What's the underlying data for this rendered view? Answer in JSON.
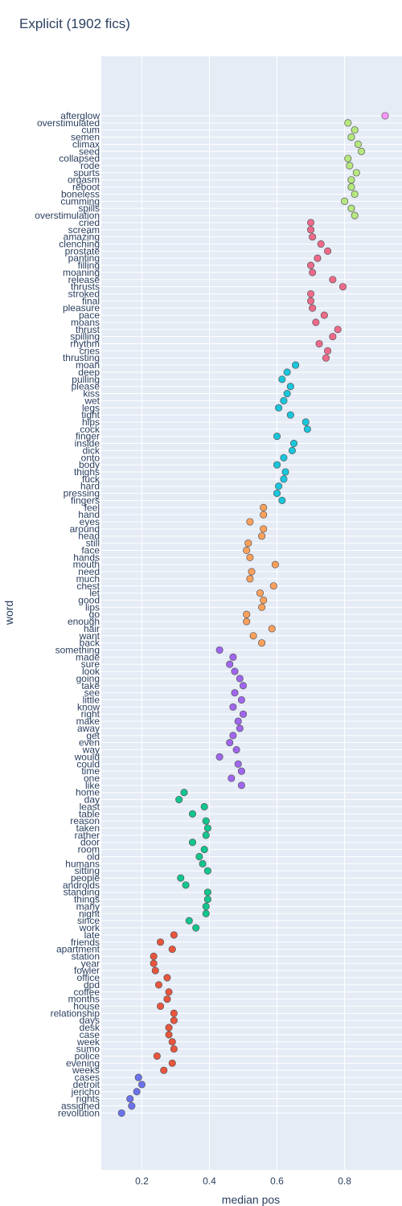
{
  "chart_data": {
    "type": "scatter",
    "title": "Explicit (1902 fics)",
    "xlabel": "median pos",
    "ylabel": "word",
    "xlim": [
      0.08,
      0.97
    ],
    "xticks": [
      0.2,
      0.4,
      0.6,
      0.8
    ],
    "xtick_labels": [
      "0.2",
      "0.4",
      "0.6",
      "0.8"
    ],
    "grid": true,
    "legend": "none",
    "plot_bg": "#e5ecf6",
    "grid_color": "#ffffff",
    "text_color": "#2a3f5f",
    "marker_outline": "#555555",
    "clusters": [
      {
        "color": "#ff97ff",
        "points": [
          [
            "afterglow",
            0.92
          ]
        ]
      },
      {
        "color": "#b6e880",
        "points": [
          [
            "overstimulated",
            0.81
          ],
          [
            "cum",
            0.83
          ],
          [
            "semen",
            0.82
          ],
          [
            "climax",
            0.84
          ],
          [
            "seed",
            0.85
          ],
          [
            "collapsed",
            0.81
          ],
          [
            "rode",
            0.815
          ],
          [
            "spurts",
            0.835
          ],
          [
            "orgasm",
            0.82
          ],
          [
            "reboot",
            0.82
          ],
          [
            "boneless",
            0.83
          ],
          [
            "cumming",
            0.8
          ],
          [
            "spills",
            0.82
          ],
          [
            "overstimulation",
            0.83
          ]
        ]
      },
      {
        "color": "#ef6a8a",
        "points": [
          [
            "cried",
            0.7
          ],
          [
            "scream",
            0.7
          ],
          [
            "amazing",
            0.705
          ],
          [
            "clenching",
            0.73
          ],
          [
            "prostate",
            0.75
          ],
          [
            "panting",
            0.72
          ],
          [
            "filling",
            0.7
          ],
          [
            "moaning",
            0.705
          ],
          [
            "release",
            0.765
          ],
          [
            "thrusts",
            0.795
          ],
          [
            "stroked",
            0.7
          ],
          [
            "final",
            0.7
          ],
          [
            "pleasure",
            0.705
          ],
          [
            "pace",
            0.74
          ],
          [
            "moans",
            0.715
          ],
          [
            "thrust",
            0.78
          ],
          [
            "spilling",
            0.765
          ],
          [
            "rhythm",
            0.725
          ],
          [
            "cries",
            0.75
          ],
          [
            "thrusting",
            0.745
          ]
        ]
      },
      {
        "color": "#19c6dc",
        "points": [
          [
            "moan",
            0.655
          ],
          [
            "deep",
            0.63
          ],
          [
            "pulling",
            0.615
          ],
          [
            "please",
            0.64
          ],
          [
            "kiss",
            0.63
          ],
          [
            "wet",
            0.62
          ],
          [
            "legs",
            0.605
          ],
          [
            "tight",
            0.64
          ],
          [
            "hips",
            0.685
          ],
          [
            "cock",
            0.69
          ],
          [
            "finger",
            0.6
          ],
          [
            "inside",
            0.65
          ],
          [
            "dick",
            0.645
          ],
          [
            "onto",
            0.62
          ],
          [
            "body",
            0.6
          ],
          [
            "thighs",
            0.625
          ],
          [
            "fuck",
            0.62
          ],
          [
            "hard",
            0.605
          ],
          [
            "pressing",
            0.6
          ],
          [
            "fingers",
            0.615
          ]
        ]
      },
      {
        "color": "#fea15c",
        "points": [
          [
            "feel",
            0.56
          ],
          [
            "hand",
            0.56
          ],
          [
            "eyes",
            0.52
          ],
          [
            "around",
            0.56
          ],
          [
            "head",
            0.555
          ],
          [
            "still",
            0.515
          ],
          [
            "face",
            0.51
          ],
          [
            "hands",
            0.52
          ],
          [
            "mouth",
            0.595
          ],
          [
            "need",
            0.525
          ],
          [
            "much",
            0.52
          ],
          [
            "chest",
            0.59
          ],
          [
            "let",
            0.55
          ],
          [
            "good",
            0.56
          ],
          [
            "lips",
            0.555
          ],
          [
            "go",
            0.51
          ],
          [
            "enough",
            0.51
          ],
          [
            "hair",
            0.585
          ],
          [
            "want",
            0.53
          ],
          [
            "back",
            0.555
          ]
        ]
      },
      {
        "color": "#a066f0",
        "points": [
          [
            "something",
            0.43
          ],
          [
            "made",
            0.47
          ],
          [
            "sure",
            0.46
          ],
          [
            "look",
            0.475
          ],
          [
            "going",
            0.49
          ],
          [
            "take",
            0.5
          ],
          [
            "see",
            0.475
          ],
          [
            "little",
            0.495
          ],
          [
            "know",
            0.47
          ],
          [
            "right",
            0.5
          ],
          [
            "make",
            0.485
          ],
          [
            "away",
            0.49
          ],
          [
            "get",
            0.47
          ],
          [
            "even",
            0.46
          ],
          [
            "way",
            0.48
          ],
          [
            "would",
            0.43
          ],
          [
            "could",
            0.485
          ],
          [
            "time",
            0.495
          ],
          [
            "one",
            0.465
          ],
          [
            "like",
            0.495
          ]
        ]
      },
      {
        "color": "#13c68e",
        "points": [
          [
            "home",
            0.325
          ],
          [
            "day",
            0.31
          ],
          [
            "least",
            0.385
          ],
          [
            "table",
            0.35
          ],
          [
            "reason",
            0.39
          ],
          [
            "taken",
            0.395
          ],
          [
            "rather",
            0.39
          ],
          [
            "door",
            0.35
          ],
          [
            "room",
            0.385
          ],
          [
            "old",
            0.37
          ],
          [
            "humans",
            0.38
          ],
          [
            "sitting",
            0.395
          ],
          [
            "people",
            0.315
          ],
          [
            "androids",
            0.33
          ],
          [
            "standing",
            0.395
          ],
          [
            "things",
            0.395
          ],
          [
            "many",
            0.39
          ],
          [
            "night",
            0.39
          ],
          [
            "since",
            0.34
          ],
          [
            "work",
            0.36
          ]
        ]
      },
      {
        "color": "#e9553d",
        "points": [
          [
            "late",
            0.295
          ],
          [
            "friends",
            0.255
          ],
          [
            "apartment",
            0.29
          ],
          [
            "station",
            0.235
          ],
          [
            "year",
            0.235
          ],
          [
            "fowler",
            0.24
          ],
          [
            "office",
            0.275
          ],
          [
            "dpd",
            0.25
          ],
          [
            "coffee",
            0.28
          ],
          [
            "months",
            0.275
          ],
          [
            "house",
            0.255
          ],
          [
            "relationship",
            0.295
          ],
          [
            "days",
            0.295
          ],
          [
            "desk",
            0.28
          ],
          [
            "case",
            0.28
          ],
          [
            "week",
            0.29
          ],
          [
            "sumo",
            0.295
          ],
          [
            "police",
            0.245
          ],
          [
            "evening",
            0.29
          ],
          [
            "weeks",
            0.265
          ]
        ]
      },
      {
        "color": "#6b72ee",
        "points": [
          [
            "cases",
            0.19
          ],
          [
            "detroit",
            0.2
          ],
          [
            "jericho",
            0.185
          ],
          [
            "rights",
            0.165
          ],
          [
            "assigned",
            0.17
          ],
          [
            "revolution",
            0.14
          ]
        ]
      }
    ]
  }
}
